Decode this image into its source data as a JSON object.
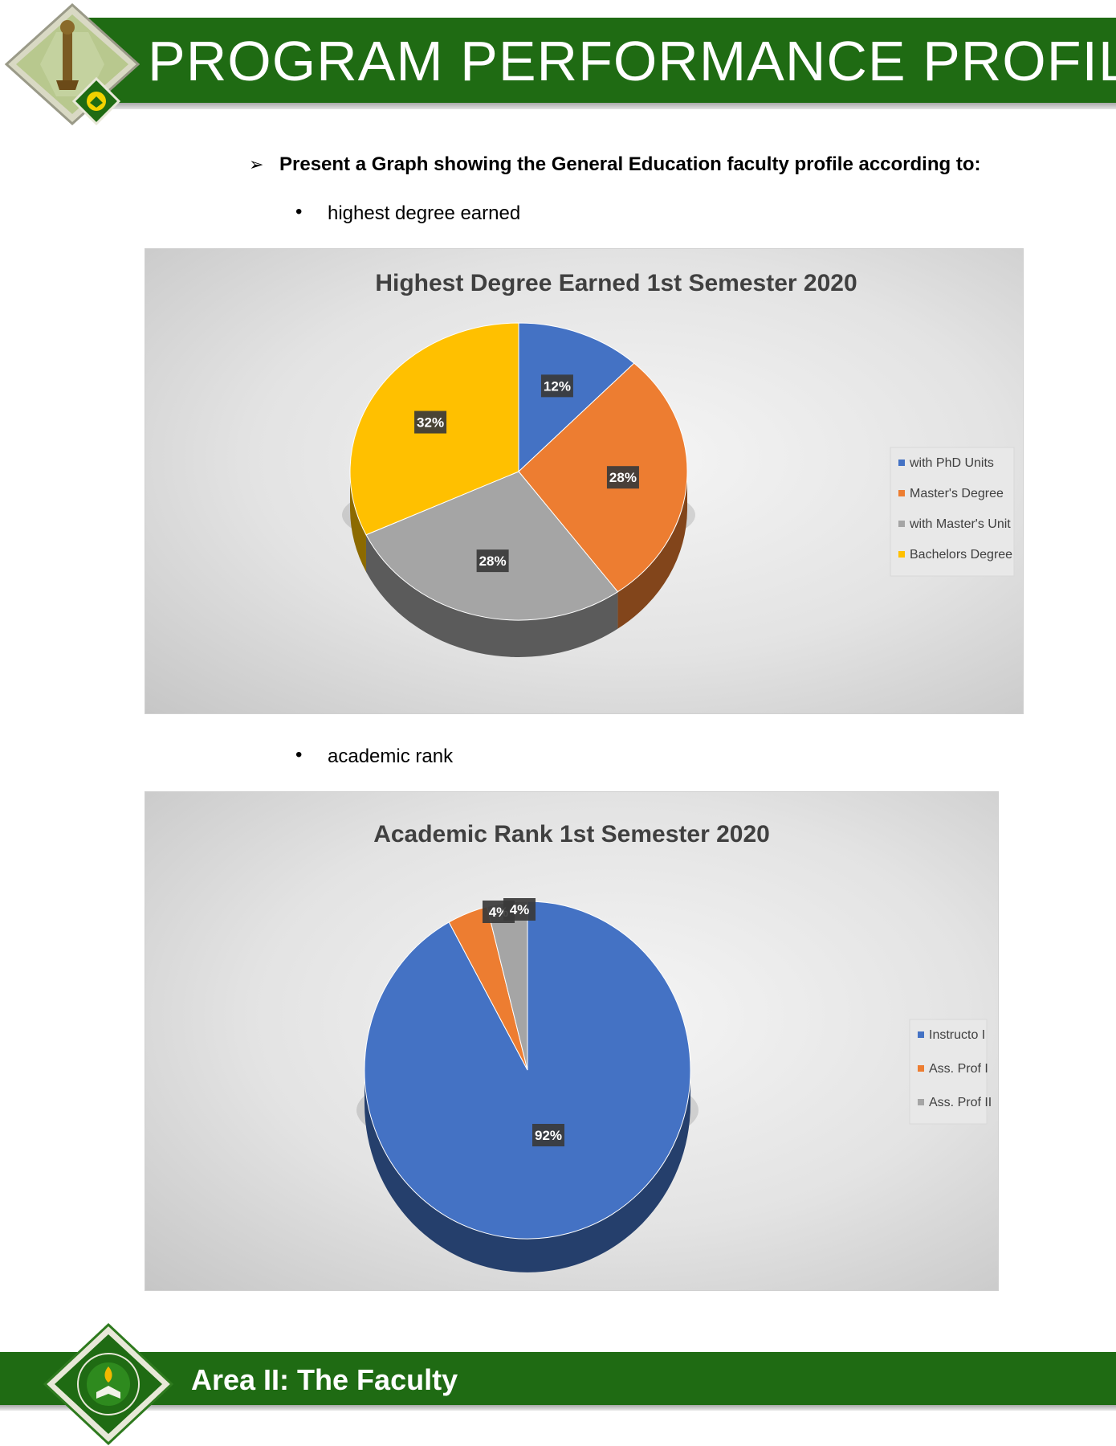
{
  "header": {
    "title": "PROGRAM PERFORMANCE PROFILE"
  },
  "intro": {
    "arrow": "➢",
    "text": "Present a Graph showing the General Education faculty profile according to:",
    "bullets": [
      "highest degree earned",
      "academic rank"
    ]
  },
  "colors": {
    "brand_green": "#1f6b13",
    "blue": "#4472c4",
    "orange": "#ed7d31",
    "gray": "#a5a5a5",
    "yellow": "#ffc000"
  },
  "chart_data": [
    {
      "type": "pie",
      "title": "Highest Degree Earned 1st Semester 2020",
      "categories": [
        "with PhD Units",
        "Master's Degree",
        "with Master's Unit",
        "Bachelors Degree"
      ],
      "values": [
        12,
        28,
        28,
        32
      ],
      "labels": [
        "12%",
        "28%",
        "28%",
        "32%"
      ],
      "colors": [
        "#4472c4",
        "#ed7d31",
        "#a5a5a5",
        "#ffc000"
      ],
      "legend": "right"
    },
    {
      "type": "pie",
      "title": "Academic Rank 1st Semester 2020",
      "categories": [
        "Instructo I",
        "Ass. Prof I",
        "Ass. Prof II"
      ],
      "values": [
        92,
        4,
        4
      ],
      "labels": [
        "92%",
        "4%",
        "4%"
      ],
      "colors": [
        "#4472c4",
        "#ed7d31",
        "#a5a5a5"
      ],
      "legend": "right"
    }
  ],
  "footer": {
    "title": "Area II: The Faculty"
  }
}
